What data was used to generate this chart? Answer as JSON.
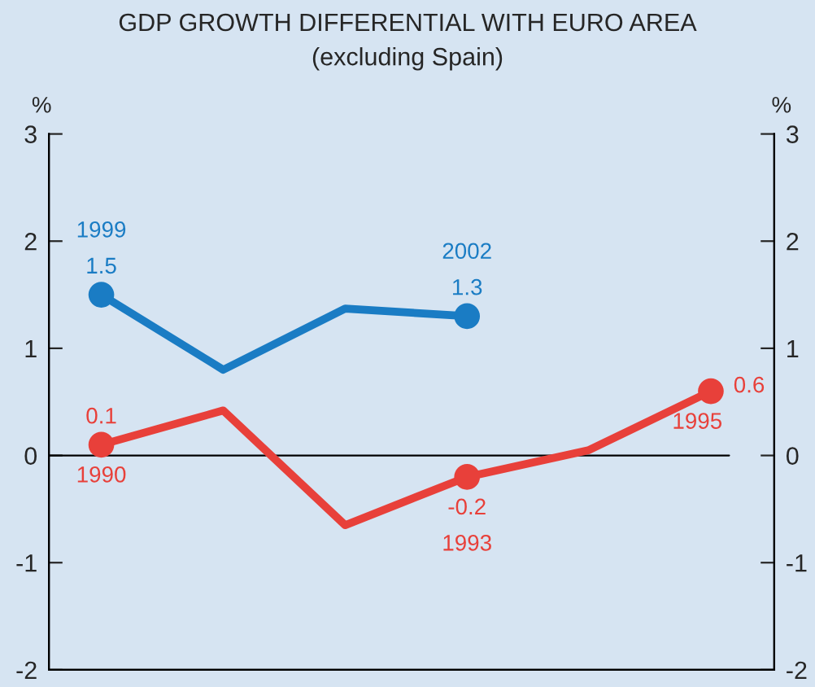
{
  "chart_data": {
    "type": "line",
    "title": "GDP GROWTH DIFFERENTIAL WITH EURO AREA",
    "subtitle": "(excluding Spain)",
    "ylabel": "%",
    "y2label": "%",
    "categories": [
      null,
      null,
      null,
      null,
      null,
      null
    ],
    "series": [
      {
        "color": "#1a7cc4",
        "values": [
          1.5,
          0.8,
          1.37,
          1.3,
          null,
          null
        ],
        "value_labels": [
          "1.5",
          null,
          null,
          "1.3",
          null,
          null
        ]
      },
      {
        "color": "#e8403a",
        "values": [
          0.1,
          0.42,
          -0.65,
          -0.2,
          0.05,
          0.6
        ],
        "value_labels": [
          "0.1",
          null,
          null,
          "-0.2",
          null,
          "0.6"
        ]
      }
    ],
    "annotations": [
      {
        "text": "1999",
        "y": 1.5
      },
      {
        "text": "2002",
        "y": 1.3
      },
      {
        "text": "1990",
        "y": 0.1
      },
      {
        "text": "1993",
        "y": -0.2
      },
      {
        "text": "1995",
        "y": 0.6
      }
    ],
    "ref_lines": [
      {
        "axis": "y",
        "value": 0,
        "color": "#000000"
      }
    ],
    "ylim": [
      -2,
      3
    ],
    "yticks": [
      -2,
      -1,
      0,
      1,
      2,
      3
    ],
    "y2lim": [
      -2,
      3
    ],
    "y2ticks": [
      -2,
      -1,
      0,
      1,
      2,
      3
    ],
    "tick_labels": "y",
    "marker": "circle",
    "line_style": "solid",
    "grid": false,
    "legend": false
  }
}
